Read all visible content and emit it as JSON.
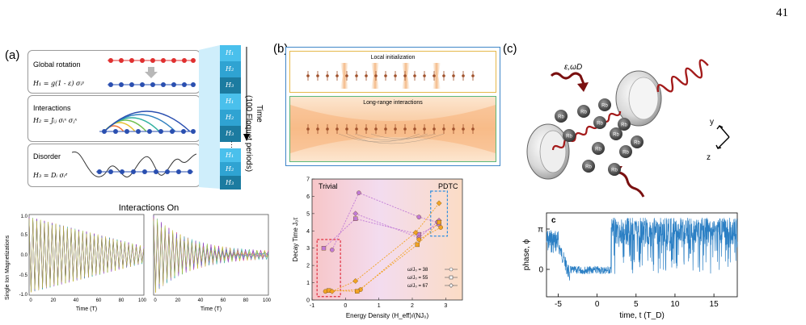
{
  "page_number": "41",
  "panel_a": {
    "label": "(a)",
    "boxes": [
      {
        "title": "Global rotation",
        "equation": "H₁ = g(1 - ε) σᵢʸ"
      },
      {
        "title": "Interactions",
        "equation": "H₂ = Jᵢⱼ σᵢˣ σⱼˣ"
      },
      {
        "title": "Disorder",
        "equation": "H₃ = Dᵢ σᵢᶻ"
      }
    ],
    "hamiltonian_stack": [
      "H₁",
      "H₂",
      "H₃",
      "H₁",
      "H₂",
      "H₃",
      "H₁",
      "H₂",
      "H₃"
    ],
    "time_label": "Time",
    "floquet_label": "(100 Floquet periods)",
    "plot_title": "Interactions On",
    "plot_ylabel": "Single Ion Magnetizations",
    "plot_xlabel": "Time (T)",
    "plot_xticks": [
      "0",
      "20",
      "40",
      "60",
      "80",
      "100"
    ],
    "plot_yticks": [
      "1.0",
      "0.5",
      "0.0",
      "-0.5",
      "-1.0"
    ]
  },
  "panel_b": {
    "label": "(b)",
    "top_box_title": "Local initialization",
    "bottom_box_title": "Long-range interactions",
    "colors": {
      "top_border": "#e6b84a",
      "middle_border": "#5cb87a",
      "outer_border": "#3f86c8"
    }
  },
  "chart_data": {
    "type": "scatter",
    "title": "",
    "xlabel": "Energy Density ⟨H_eff⟩/(NJ₀)",
    "ylabel": "Decay Time J₀τ",
    "xlim": [
      -1,
      3.5
    ],
    "ylim": [
      0,
      7
    ],
    "xticks": [
      -1,
      0,
      1,
      2,
      3
    ],
    "yticks": [
      0,
      1,
      2,
      3,
      4,
      5,
      6,
      7
    ],
    "region_labels": [
      "Trivial",
      "PDTC"
    ],
    "legend": [
      "ω/J₀ = 38",
      "ω/J₀ = 55",
      "ω/J₀ = 67"
    ],
    "series": [
      {
        "group": "purple",
        "marker": "circle",
        "points": [
          [
            -0.4,
            2.9
          ],
          [
            0.4,
            6.2
          ],
          [
            2.2,
            4.8
          ],
          [
            2.75,
            4.5
          ]
        ]
      },
      {
        "group": "purple",
        "marker": "square",
        "points": [
          [
            -0.65,
            3.0
          ],
          [
            0.3,
            4.7
          ],
          [
            2.2,
            3.8
          ],
          [
            2.8,
            4.4
          ]
        ]
      },
      {
        "group": "purple",
        "marker": "diamond",
        "points": [
          [
            0.3,
            5.0
          ],
          [
            2.2,
            3.6
          ],
          [
            2.8,
            4.6
          ]
        ]
      },
      {
        "group": "orange",
        "marker": "circle",
        "points": [
          [
            -0.6,
            0.5
          ],
          [
            0.45,
            0.6
          ],
          [
            2.2,
            3.5
          ],
          [
            2.85,
            4.2
          ]
        ]
      },
      {
        "group": "orange",
        "marker": "square",
        "points": [
          [
            -0.5,
            0.55
          ],
          [
            0.35,
            0.5
          ],
          [
            2.15,
            3.2
          ],
          [
            2.8,
            4.5
          ]
        ]
      },
      {
        "group": "orange",
        "marker": "diamond",
        "points": [
          [
            -0.4,
            0.5
          ],
          [
            0.3,
            1.1
          ],
          [
            2.1,
            3.9
          ],
          [
            2.8,
            5.6
          ]
        ]
      }
    ],
    "colors": {
      "purple": "#c07ad6",
      "orange": "#f2a324",
      "trivial_box": "#e03040",
      "pdtc_box": "#2e8fe0"
    }
  },
  "panel_c": {
    "label": "(c)",
    "drive_label": "ε,ωD",
    "atom_label": "Rb",
    "axes": {
      "y": "y",
      "z": "z"
    },
    "plot": {
      "sublabel": "c",
      "ylabel": "phase, ϕ",
      "xlabel": "time, t (T_D)",
      "xticks": [
        "-5",
        "0",
        "5",
        "10",
        "15"
      ],
      "yticks": [
        "π",
        "0"
      ],
      "color": "#2b7fc4"
    }
  }
}
